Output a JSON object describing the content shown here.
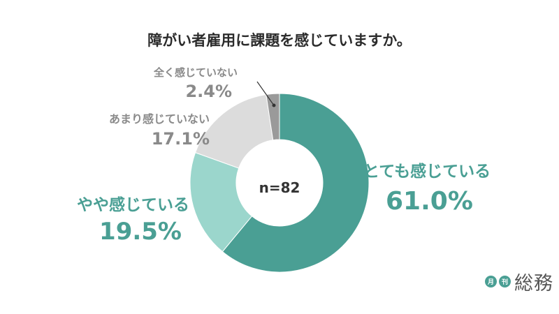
{
  "chart_data": {
    "type": "pie",
    "title": "障がい者雇用に課題を感じていますか。",
    "center_label": "n=82",
    "slices": [
      {
        "label": "とても感じている",
        "value": 61.0,
        "value_label": "61.0%",
        "color": "#4a9f94"
      },
      {
        "label": "やや感じている",
        "value": 19.5,
        "value_label": "19.5%",
        "color": "#9bd6cc"
      },
      {
        "label": "あまり感じていない",
        "value": 17.1,
        "value_label": "17.1%",
        "color": "#dcdcdc"
      },
      {
        "label": "全く感じていない",
        "value": 2.4,
        "value_label": "2.4%",
        "color": "#9a9a9a"
      }
    ]
  },
  "logo": {
    "badge1": "月",
    "badge2": "刊",
    "text": "総務"
  }
}
